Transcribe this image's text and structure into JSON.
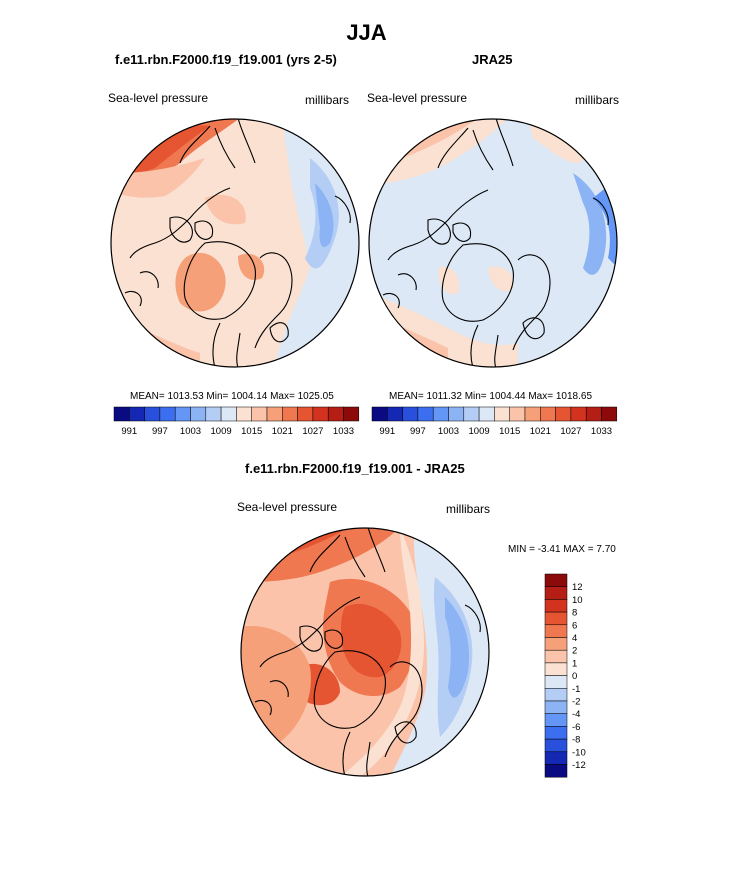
{
  "main_title": "JJA",
  "panels": [
    {
      "title": "f.e11.rbn.F2000.f19_f19.001 (yrs 2-5)",
      "left_label": "Sea-level pressure",
      "right_label": "millibars",
      "stats": "MEAN= 1013.53  Min= 1004.14  Max= 1025.05"
    },
    {
      "title": "JRA25",
      "left_label": "Sea-level pressure",
      "right_label": "millibars",
      "stats": "MEAN= 1011.32  Min= 1004.44  Max= 1018.65"
    },
    {
      "title": "f.e11.rbn.F2000.f19_f19.001 - JRA25",
      "left_label": "Sea-level pressure",
      "right_label": "millibars",
      "stats": "MIN =  -3.41 MAX =   7.70"
    }
  ],
  "colorbar_levels": [
    "991",
    "997",
    "1003",
    "1009",
    "1015",
    "1021",
    "1027",
    "1033"
  ],
  "colorbar_colors": [
    "#0a0a82",
    "#1428b4",
    "#2850dc",
    "#3c6ef0",
    "#6496f5",
    "#8cb4f5",
    "#b4cdf5",
    "#dce8f5",
    "#fae1d2",
    "#fac3aa",
    "#f5a078",
    "#f07850",
    "#e65532",
    "#d2321e",
    "#b41e14",
    "#8c0a0a"
  ],
  "diff_colorbar_levels": [
    "12",
    "10",
    "8",
    "6",
    "4",
    "2",
    "1",
    "0",
    "-1",
    "-2",
    "-4",
    "-6",
    "-8",
    "-10",
    "-12"
  ],
  "diff_colorbar_colors": [
    "#8c0a0a",
    "#b41e14",
    "#d2321e",
    "#e65532",
    "#f07850",
    "#f5a078",
    "#fac3aa",
    "#fae1d2",
    "#dce8f5",
    "#b4cdf5",
    "#8cb4f5",
    "#6496f5",
    "#3c6ef0",
    "#2850dc",
    "#1428b4",
    "#0a0a82"
  ]
}
